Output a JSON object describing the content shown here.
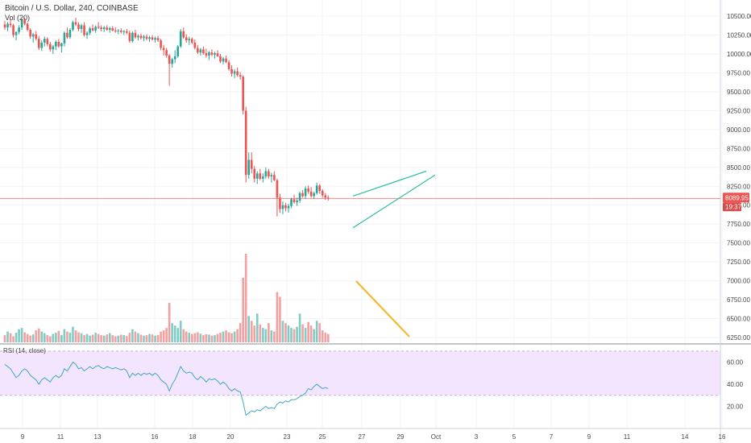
{
  "header": {
    "title": "Bitcoin / U.S. Dollar, 240, COINBASE",
    "volume_label": "Vol (20)"
  },
  "price_axis": {
    "ticks": [
      "10500.00",
      "10250.00",
      "10000.00",
      "9750.00",
      "9500.00",
      "9250.00",
      "9000.00",
      "8750.00",
      "8500.00",
      "8250.00",
      "8000.00",
      "7750.00",
      "7500.00",
      "7250.00",
      "7000.00",
      "6750.00",
      "6500.00",
      "6250.00"
    ],
    "current_price": "8089.95",
    "countdown": "19:37"
  },
  "rsi": {
    "label": "RSI (14, close)",
    "ticks": [
      "60.00",
      "40.00",
      "20.00"
    ]
  },
  "time_axis": {
    "labels": [
      "9",
      "11",
      "13",
      "16",
      "18",
      "20",
      "23",
      "25",
      "27",
      "29",
      "Oct",
      "3",
      "5",
      "7",
      "9",
      "11",
      "14",
      "16"
    ]
  },
  "colors": {
    "up": "#26a69a",
    "down": "#ef5350",
    "vol_up": "#80cbc4",
    "vol_down": "#f4a0a0",
    "pattern": "#2bbf9f",
    "volume_trend": "#f5b82e",
    "rsi_line": "#3fa8c5",
    "rsi_band": "#f3e5fd",
    "price_line": "#ef5350"
  },
  "chart_data": {
    "type": "candlestick",
    "symbol": "Bitcoin / U.S. Dollar",
    "interval": "240",
    "exchange": "COINBASE",
    "candles": [
      [
        10390,
        10440,
        10320,
        10350
      ],
      [
        10350,
        10420,
        10300,
        10400
      ],
      [
        10400,
        10460,
        10350,
        10380
      ],
      [
        10380,
        10400,
        10220,
        10250
      ],
      [
        10250,
        10300,
        10180,
        10290
      ],
      [
        10290,
        10380,
        10260,
        10350
      ],
      [
        10350,
        10470,
        10320,
        10450
      ],
      [
        10450,
        10480,
        10380,
        10400
      ],
      [
        10400,
        10420,
        10300,
        10320
      ],
      [
        10320,
        10340,
        10200,
        10230
      ],
      [
        10230,
        10280,
        10150,
        10260
      ],
      [
        10260,
        10300,
        10180,
        10200
      ],
      [
        10200,
        10240,
        10050,
        10080
      ],
      [
        10080,
        10180,
        10040,
        10150
      ],
      [
        10150,
        10230,
        10100,
        10200
      ],
      [
        10200,
        10220,
        10100,
        10130
      ],
      [
        10130,
        10160,
        10030,
        10060
      ],
      [
        10060,
        10120,
        10000,
        10100
      ],
      [
        10100,
        10180,
        10050,
        10160
      ],
      [
        10160,
        10200,
        10080,
        10100
      ],
      [
        10100,
        10150,
        10020,
        10140
      ],
      [
        10140,
        10300,
        10100,
        10280
      ],
      [
        10280,
        10350,
        10200,
        10220
      ],
      [
        10220,
        10340,
        10200,
        10320
      ],
      [
        10320,
        10440,
        10300,
        10420
      ],
      [
        10420,
        10480,
        10370,
        10390
      ],
      [
        10390,
        10420,
        10300,
        10330
      ],
      [
        10330,
        10400,
        10280,
        10380
      ],
      [
        10380,
        10420,
        10230,
        10250
      ],
      [
        10250,
        10300,
        10200,
        10280
      ],
      [
        10280,
        10360,
        10250,
        10340
      ],
      [
        10340,
        10390,
        10300,
        10310
      ],
      [
        10310,
        10380,
        10280,
        10360
      ],
      [
        10360,
        10420,
        10330,
        10350
      ],
      [
        10350,
        10380,
        10300,
        10330
      ],
      [
        10330,
        10370,
        10290,
        10350
      ],
      [
        10350,
        10380,
        10310,
        10320
      ],
      [
        10320,
        10360,
        10280,
        10340
      ],
      [
        10340,
        10370,
        10300,
        10310
      ],
      [
        10310,
        10350,
        10280,
        10300
      ],
      [
        10300,
        10330,
        10260,
        10310
      ],
      [
        10310,
        10340,
        10270,
        10290
      ],
      [
        10290,
        10320,
        10250,
        10300
      ],
      [
        10300,
        10330,
        10260,
        10280
      ],
      [
        10280,
        10310,
        10150,
        10170
      ],
      [
        10170,
        10300,
        10150,
        10280
      ],
      [
        10280,
        10320,
        10200,
        10220
      ],
      [
        10220,
        10260,
        10180,
        10240
      ],
      [
        10240,
        10270,
        10190,
        10210
      ],
      [
        10210,
        10250,
        10170,
        10230
      ],
      [
        10230,
        10260,
        10180,
        10200
      ],
      [
        10200,
        10240,
        10160,
        10220
      ],
      [
        10220,
        10250,
        10180,
        10190
      ],
      [
        10190,
        10230,
        10150,
        10210
      ],
      [
        10210,
        10240,
        10160,
        10180
      ],
      [
        10180,
        10200,
        10050,
        10080
      ],
      [
        10080,
        10120,
        9980,
        10050
      ],
      [
        10050,
        10080,
        9950,
        9980
      ],
      [
        9980,
        10000,
        9580,
        9870
      ],
      [
        9870,
        9950,
        9820,
        9930
      ],
      [
        9930,
        10050,
        9880,
        9970
      ],
      [
        9970,
        10120,
        9950,
        10100
      ],
      [
        10100,
        10330,
        10080,
        10300
      ],
      [
        10300,
        10350,
        10200,
        10220
      ],
      [
        10220,
        10260,
        10150,
        10180
      ],
      [
        10180,
        10230,
        10120,
        10200
      ],
      [
        10200,
        10220,
        10130,
        10150
      ],
      [
        10150,
        10190,
        10060,
        10080
      ],
      [
        10080,
        10120,
        10000,
        10020
      ],
      [
        10020,
        10080,
        9980,
        10060
      ],
      [
        10060,
        10100,
        9990,
        10010
      ],
      [
        10010,
        10070,
        9950,
        9980
      ],
      [
        9980,
        10040,
        9920,
        10020
      ],
      [
        10020,
        10060,
        9970,
        9990
      ],
      [
        9990,
        10030,
        9940,
        10010
      ],
      [
        10010,
        10050,
        9960,
        9970
      ],
      [
        9970,
        10000,
        9880,
        9900
      ],
      [
        9900,
        9960,
        9860,
        9940
      ],
      [
        9940,
        9980,
        9880,
        9890
      ],
      [
        9890,
        9920,
        9780,
        9800
      ],
      [
        9800,
        9850,
        9700,
        9740
      ],
      [
        9740,
        9800,
        9680,
        9770
      ],
      [
        9770,
        9820,
        9700,
        9720
      ],
      [
        9720,
        9760,
        9660,
        9700
      ],
      [
        9700,
        9720,
        9200,
        9250
      ],
      [
        9250,
        9300,
        8300,
        8400
      ],
      [
        8400,
        8700,
        8350,
        8600
      ],
      [
        8600,
        8700,
        8420,
        8480
      ],
      [
        8480,
        8520,
        8300,
        8350
      ],
      [
        8350,
        8450,
        8280,
        8420
      ],
      [
        8420,
        8480,
        8330,
        8350
      ],
      [
        8350,
        8420,
        8300,
        8380
      ],
      [
        8380,
        8500,
        8350,
        8450
      ],
      [
        8450,
        8480,
        8350,
        8380
      ],
      [
        8380,
        8430,
        8300,
        8400
      ],
      [
        8400,
        8450,
        8320,
        8330
      ],
      [
        8330,
        8350,
        7850,
        8100
      ],
      [
        8100,
        8150,
        7900,
        7950
      ],
      [
        7950,
        8050,
        7880,
        8000
      ],
      [
        8000,
        8030,
        7920,
        7960
      ],
      [
        7960,
        8020,
        7900,
        7990
      ],
      [
        7990,
        8100,
        7960,
        8080
      ],
      [
        8080,
        8140,
        8020,
        8040
      ],
      [
        8040,
        8100,
        7990,
        8060
      ],
      [
        8060,
        8180,
        8030,
        8160
      ],
      [
        8160,
        8200,
        8100,
        8120
      ],
      [
        8120,
        8250,
        8080,
        8220
      ],
      [
        8220,
        8260,
        8150,
        8180
      ],
      [
        8180,
        8240,
        8100,
        8120
      ],
      [
        8120,
        8180,
        8080,
        8160
      ],
      [
        8160,
        8300,
        8140,
        8260
      ],
      [
        8260,
        8280,
        8150,
        8190
      ],
      [
        8190,
        8210,
        8100,
        8130
      ],
      [
        8130,
        8160,
        8070,
        8100
      ],
      [
        8100,
        8130,
        8060,
        8090
      ]
    ],
    "volumes": [
      30,
      45,
      38,
      25,
      40,
      55,
      60,
      42,
      35,
      28,
      33,
      50,
      58,
      45,
      38,
      30,
      25,
      35,
      40,
      48,
      30,
      55,
      45,
      40,
      65,
      50,
      42,
      38,
      30,
      35,
      28,
      32,
      40,
      35,
      30,
      28,
      33,
      38,
      30,
      25,
      28,
      32,
      30,
      26,
      40,
      55,
      45,
      38,
      32,
      28,
      30,
      35,
      33,
      28,
      30,
      45,
      50,
      60,
      165,
      80,
      70,
      60,
      90,
      55,
      45,
      40,
      35,
      38,
      42,
      36,
      30,
      34,
      32,
      28,
      30,
      35,
      40,
      45,
      50,
      42,
      38,
      45,
      55,
      80,
      270,
      370,
      110,
      90,
      70,
      120,
      75,
      60,
      55,
      80,
      50,
      45,
      210,
      190,
      90,
      80,
      70,
      60,
      55,
      65,
      120,
      75,
      60,
      85,
      70,
      55,
      90,
      80,
      50,
      40,
      35
    ],
    "rsi_values": [
      58,
      56,
      54,
      50,
      46,
      48,
      52,
      54,
      52,
      48,
      46,
      44,
      40,
      44,
      46,
      44,
      42,
      46,
      48,
      46,
      48,
      54,
      52,
      56,
      60,
      58,
      54,
      55,
      52,
      54,
      56,
      54,
      56,
      57,
      55,
      54,
      56,
      55,
      54,
      55,
      54,
      53,
      54,
      52,
      46,
      50,
      48,
      50,
      48,
      50,
      49,
      50,
      48,
      50,
      48,
      44,
      42,
      40,
      34,
      40,
      44,
      50,
      56,
      52,
      50,
      51,
      50,
      46,
      44,
      47,
      45,
      42,
      45,
      44,
      45,
      43,
      40,
      42,
      40,
      36,
      34,
      36,
      34,
      33,
      24,
      12,
      14,
      16,
      15,
      17,
      16,
      18,
      20,
      18,
      19,
      18,
      22,
      24,
      23,
      25,
      24,
      26,
      26,
      27,
      29,
      30,
      32,
      36,
      35,
      38,
      40,
      38,
      36,
      37,
      36
    ],
    "time_labels": [
      "9",
      "11",
      "13",
      "16",
      "18",
      "20",
      "23",
      "25",
      "27",
      "29",
      "Oct",
      "3",
      "5",
      "7",
      "9",
      "11",
      "14",
      "16"
    ],
    "price_ylim": [
      6250,
      10650
    ],
    "rsi_ylim": [
      0,
      75
    ],
    "rsi_band": [
      30,
      70
    ],
    "current_price": 8089.95,
    "volume_trend_line": {
      "from_price": 7000,
      "to_price": 6270
    },
    "rising_wedge": {
      "upper": [
        [
          8120,
          8450
        ]
      ],
      "lower": [
        [
          7700,
          8400
        ]
      ]
    }
  }
}
